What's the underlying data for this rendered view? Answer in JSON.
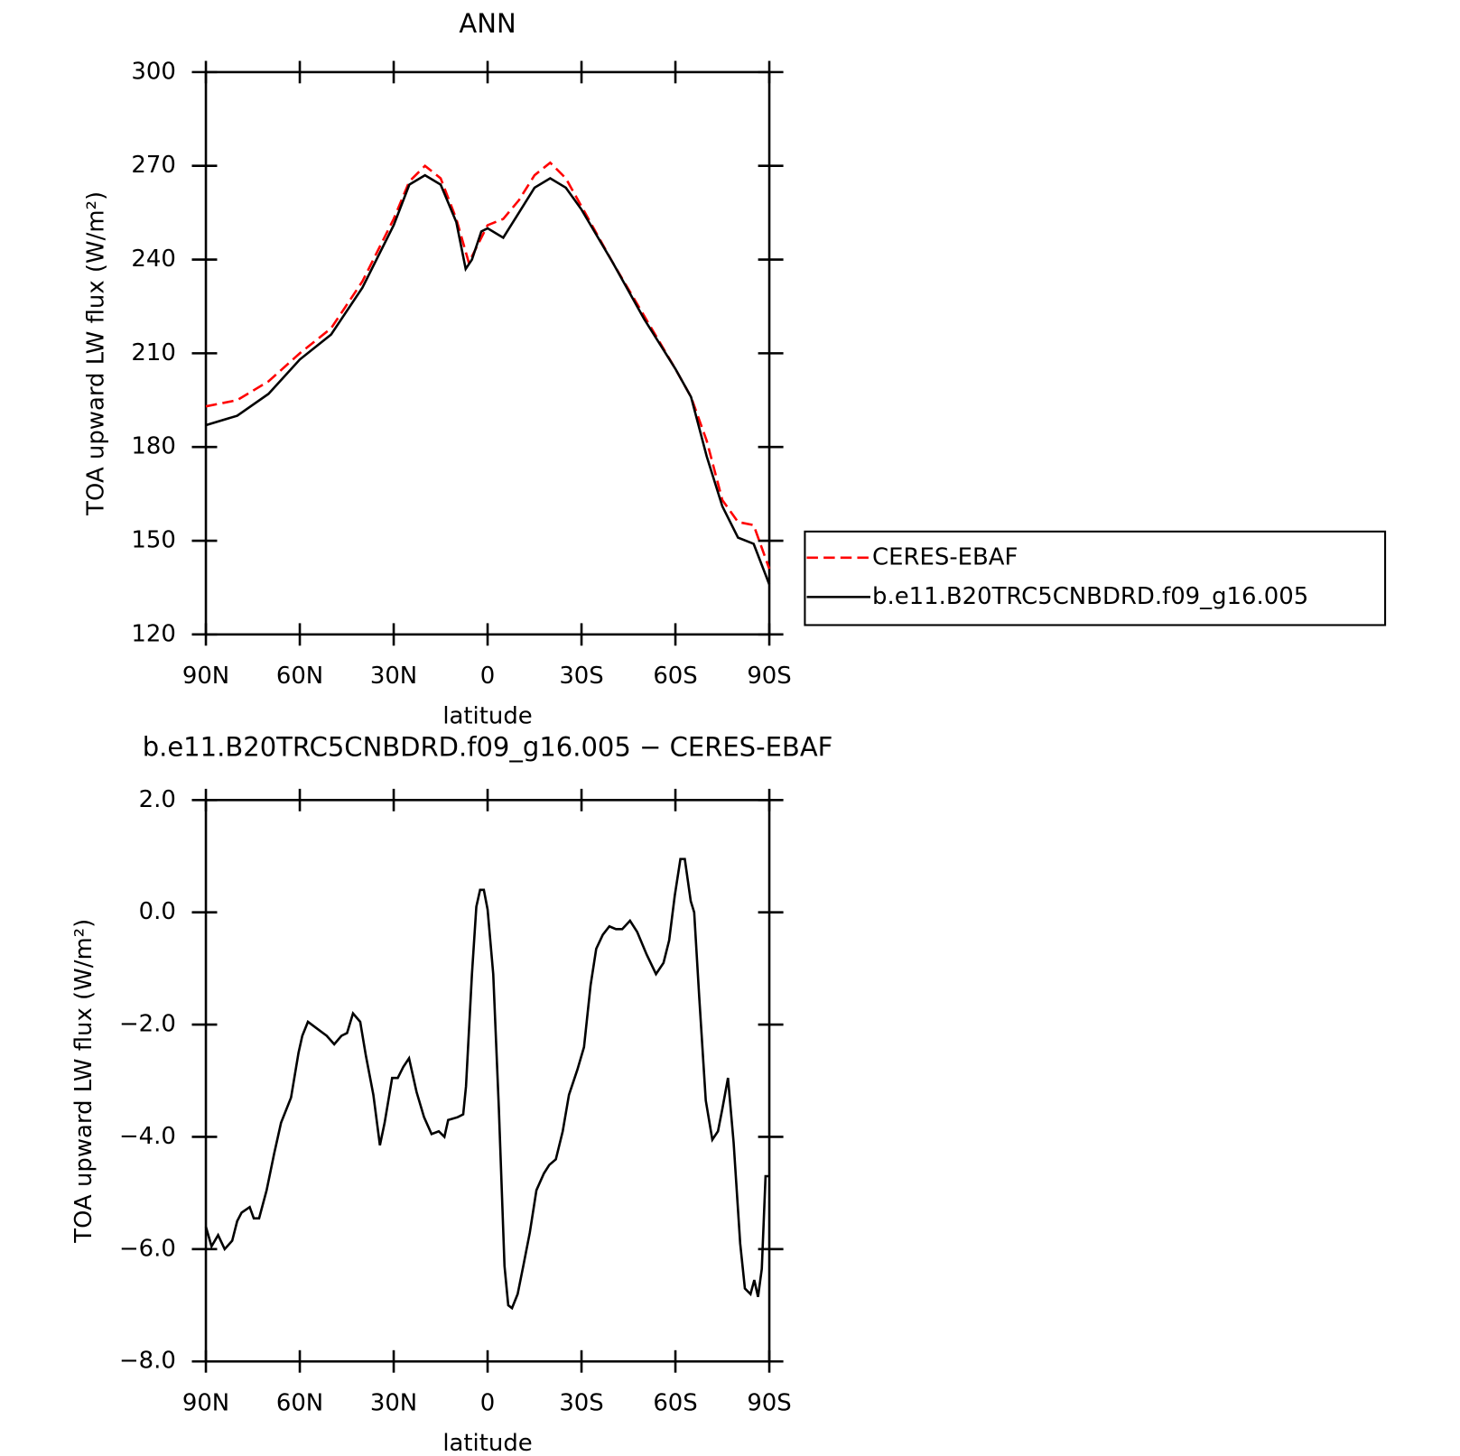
{
  "chart_data": [
    {
      "type": "line",
      "title": "ANN",
      "xlabel": "latitude",
      "ylabel": "TOA upward LW flux (W/m²)",
      "xlim": [
        90,
        -90
      ],
      "xticks": [
        {
          "value": 90,
          "label": "90N"
        },
        {
          "value": 60,
          "label": "60N"
        },
        {
          "value": 30,
          "label": "30N"
        },
        0,
        {
          "value": -30,
          "label": "30S"
        },
        {
          "value": -60,
          "label": "60S"
        },
        {
          "value": -90,
          "label": "90S"
        }
      ],
      "ylim": [
        120,
        300
      ],
      "yticks": [
        120,
        150,
        180,
        210,
        240,
        270,
        300
      ],
      "legend": "right",
      "series": [
        {
          "name": "CERES-EBAF",
          "color": "#ff0000",
          "style": "dashed",
          "x": [
            90,
            80,
            70,
            60,
            50,
            40,
            30,
            25,
            20,
            15,
            10,
            6,
            0,
            -5,
            -10,
            -15,
            -20,
            -25,
            -30,
            -40,
            -50,
            -60,
            -65,
            -70,
            -75,
            -80,
            -85,
            -90
          ],
          "values": [
            193,
            195,
            201,
            210,
            218,
            233,
            253,
            265,
            270,
            266,
            253,
            239,
            251,
            253,
            259,
            267,
            271,
            266,
            257,
            239,
            222,
            205,
            196,
            182,
            163,
            156,
            155,
            141
          ]
        },
        {
          "name": "b.e11.B20TRC5CNBDRD.f09_g16.005",
          "color": "#000000",
          "style": "solid",
          "x": [
            90,
            80,
            70,
            60,
            50,
            40,
            30,
            25,
            20,
            15,
            10,
            7,
            5,
            2,
            0,
            -5,
            -10,
            -15,
            -20,
            -25,
            -30,
            -40,
            -50,
            -60,
            -65,
            -70,
            -75,
            -80,
            -85,
            -90
          ],
          "values": [
            187,
            190,
            197,
            208,
            216,
            231,
            251,
            264,
            267,
            264,
            252,
            237,
            240,
            249,
            250,
            247,
            255,
            263,
            266,
            263,
            256,
            239,
            221,
            205,
            196,
            177,
            161,
            151,
            149,
            136
          ]
        }
      ]
    },
    {
      "type": "line",
      "title": "b.e11.B20TRC5CNBDRD.f09_g16.005 − CERES-EBAF",
      "xlabel": "latitude",
      "ylabel": "TOA upward LW flux (W/m²)",
      "xlim": [
        90,
        -90
      ],
      "xticks": [
        {
          "value": 90,
          "label": "90N"
        },
        {
          "value": 60,
          "label": "60N"
        },
        {
          "value": 30,
          "label": "30N"
        },
        0,
        {
          "value": -30,
          "label": "30S"
        },
        {
          "value": -60,
          "label": "60S"
        },
        {
          "value": -90,
          "label": "90S"
        }
      ],
      "ylim": [
        -8,
        2
      ],
      "yticks": [
        {
          "value": -8,
          "label": "−8.0"
        },
        {
          "value": -6,
          "label": "−6.0"
        },
        {
          "value": -4,
          "label": "−4.0"
        },
        {
          "value": -2,
          "label": "−2.0"
        },
        {
          "value": 0,
          "label": "0.0"
        },
        {
          "value": 2,
          "label": "2.0"
        }
      ],
      "series": [
        {
          "color": "#000000",
          "style": "solid",
          "x": [
            90,
            88.2,
            86.1,
            84,
            81.6,
            80,
            78.6,
            76,
            74.7,
            73,
            70.6,
            68.2,
            66,
            62.8,
            60.4,
            59.2,
            57.4,
            55,
            51.4,
            49,
            46.7,
            44.9,
            43,
            40.7,
            38.9,
            36.5,
            34.4,
            32.9,
            30.5,
            28.7,
            26.9,
            25.1,
            22.7,
            20.3,
            17.9,
            15.6,
            13.8,
            12.6,
            9.6,
            7.8,
            6.9,
            5,
            3.6,
            2.4,
            1.2,
            0,
            -1.8,
            -3.6,
            -5.4,
            -6.6,
            -7.8,
            -9.6,
            -11.4,
            -13.5,
            -15.6,
            -18,
            -19.7,
            -21.8,
            -24,
            -26,
            -28.7,
            -30.8,
            -32.9,
            -34.7,
            -36.8,
            -38.9,
            -41,
            -43,
            -45.5,
            -47.8,
            -50.8,
            -53.8,
            -56.2,
            -58,
            -59.8,
            -61.6,
            -63,
            -64.9,
            -66,
            -67.6,
            -69.7,
            -71.8,
            -73.6,
            -75,
            -76.8,
            -78.6,
            -80.7,
            -82.2,
            -84,
            -85.2,
            -86.4,
            -87.6,
            -88.8,
            -90
          ],
          "values": [
            -5.6,
            -5.95,
            -5.75,
            -6.0,
            -5.85,
            -5.5,
            -5.35,
            -5.25,
            -5.45,
            -5.45,
            -4.95,
            -4.3,
            -3.75,
            -3.3,
            -2.5,
            -2.2,
            -1.95,
            -2.05,
            -2.2,
            -2.35,
            -2.2,
            -2.15,
            -1.8,
            -1.95,
            -2.55,
            -3.25,
            -4.15,
            -3.75,
            -2.95,
            -2.95,
            -2.75,
            -2.6,
            -3.2,
            -3.65,
            -3.95,
            -3.9,
            -4.0,
            -3.7,
            -3.65,
            -3.6,
            -3.1,
            -1.1,
            0.1,
            0.4,
            0.4,
            0.05,
            -1.1,
            -3.5,
            -6.3,
            -7.0,
            -7.05,
            -6.8,
            -6.3,
            -5.7,
            -4.95,
            -4.65,
            -4.5,
            -4.4,
            -3.9,
            -3.25,
            -2.8,
            -2.4,
            -1.3,
            -0.65,
            -0.4,
            -0.25,
            -0.3,
            -0.3,
            -0.15,
            -0.35,
            -0.75,
            -1.1,
            -0.9,
            -0.5,
            0.3,
            0.95,
            0.95,
            0.2,
            0.0,
            -1.5,
            -3.35,
            -4.05,
            -3.9,
            -3.5,
            -2.95,
            -4.1,
            -5.9,
            -6.7,
            -6.8,
            -6.55,
            -6.85,
            -6.35,
            -4.7,
            -4.7
          ]
        }
      ]
    }
  ]
}
